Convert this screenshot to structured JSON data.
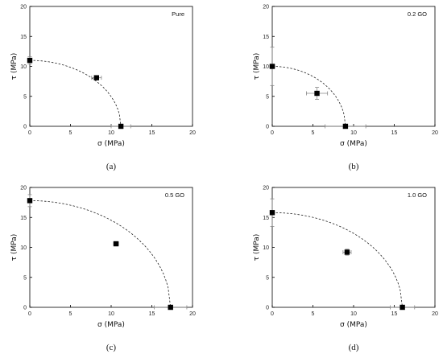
{
  "chart_data": [
    {
      "type": "scatter",
      "tag": "Pure",
      "caption": "(a)",
      "xlabel": "σ (MPa)",
      "ylabel": "τ (MPa)",
      "xlim": [
        0,
        20
      ],
      "ylim": [
        0,
        20
      ],
      "xticks": [
        "0",
        "5",
        "10",
        "15",
        "20"
      ],
      "yticks": [
        "0",
        "5",
        "10",
        "15",
        "20"
      ],
      "points": [
        {
          "x": 0.0,
          "y": 11.0,
          "xerr": 0.0,
          "yerr": 0.6
        },
        {
          "x": 8.2,
          "y": 8.1,
          "xerr": 0.6,
          "yerr": 0.3
        },
        {
          "x": 11.2,
          "y": 0.0,
          "xerr": 1.2,
          "yerr": 0.0
        }
      ],
      "fit": {
        "sigma0": 11.2,
        "tau0": 11.0
      }
    },
    {
      "type": "scatter",
      "tag": "0.2 GO",
      "caption": "(b)",
      "xlabel": "σ (MPa)",
      "ylabel": "τ (MPa)",
      "xlim": [
        0,
        20
      ],
      "ylim": [
        0,
        20
      ],
      "xticks": [
        "0",
        "5",
        "10",
        "15",
        "20"
      ],
      "yticks": [
        "0",
        "5",
        "10",
        "15",
        "20"
      ],
      "points": [
        {
          "x": 0.0,
          "y": 10.0,
          "xerr": 0.3,
          "yerr": 3.2
        },
        {
          "x": 5.5,
          "y": 5.5,
          "xerr": 1.3,
          "yerr": 1.0
        },
        {
          "x": 9.0,
          "y": 0.0,
          "xerr": 2.5,
          "yerr": 0.0
        }
      ],
      "fit": {
        "sigma0": 9.0,
        "tau0": 10.0
      }
    },
    {
      "type": "scatter",
      "tag": "0.5 GO",
      "caption": "(c)",
      "xlabel": "σ (MPa)",
      "ylabel": "τ (MPa)",
      "xlim": [
        0,
        20
      ],
      "ylim": [
        0,
        20
      ],
      "xticks": [
        "0",
        "5",
        "10",
        "15",
        "20"
      ],
      "yticks": [
        "0",
        "5",
        "10",
        "15",
        "20"
      ],
      "points": [
        {
          "x": 0.0,
          "y": 17.8,
          "xerr": 0.0,
          "yerr": 1.0
        },
        {
          "x": 10.6,
          "y": 10.6,
          "xerr": 0.3,
          "yerr": 0.3
        },
        {
          "x": 17.3,
          "y": 0.0,
          "xerr": 2.0,
          "yerr": 0.0
        }
      ],
      "fit": {
        "sigma0": 17.3,
        "tau0": 17.8
      }
    },
    {
      "type": "scatter",
      "tag": "1.0 GO",
      "caption": "(d)",
      "xlabel": "σ (MPa)",
      "ylabel": "τ (MPa)",
      "xlim": [
        0,
        20
      ],
      "ylim": [
        0,
        20
      ],
      "xticks": [
        "0",
        "5",
        "10",
        "15",
        "20"
      ],
      "yticks": [
        "0",
        "5",
        "10",
        "15",
        "20"
      ],
      "points": [
        {
          "x": 0.0,
          "y": 15.8,
          "xerr": 0.0,
          "yerr": 2.3
        },
        {
          "x": 9.2,
          "y": 9.2,
          "xerr": 0.5,
          "yerr": 0.5
        },
        {
          "x": 16.0,
          "y": 0.0,
          "xerr": 1.5,
          "yerr": 0.0
        }
      ],
      "fit": {
        "sigma0": 16.0,
        "tau0": 15.8
      }
    }
  ]
}
